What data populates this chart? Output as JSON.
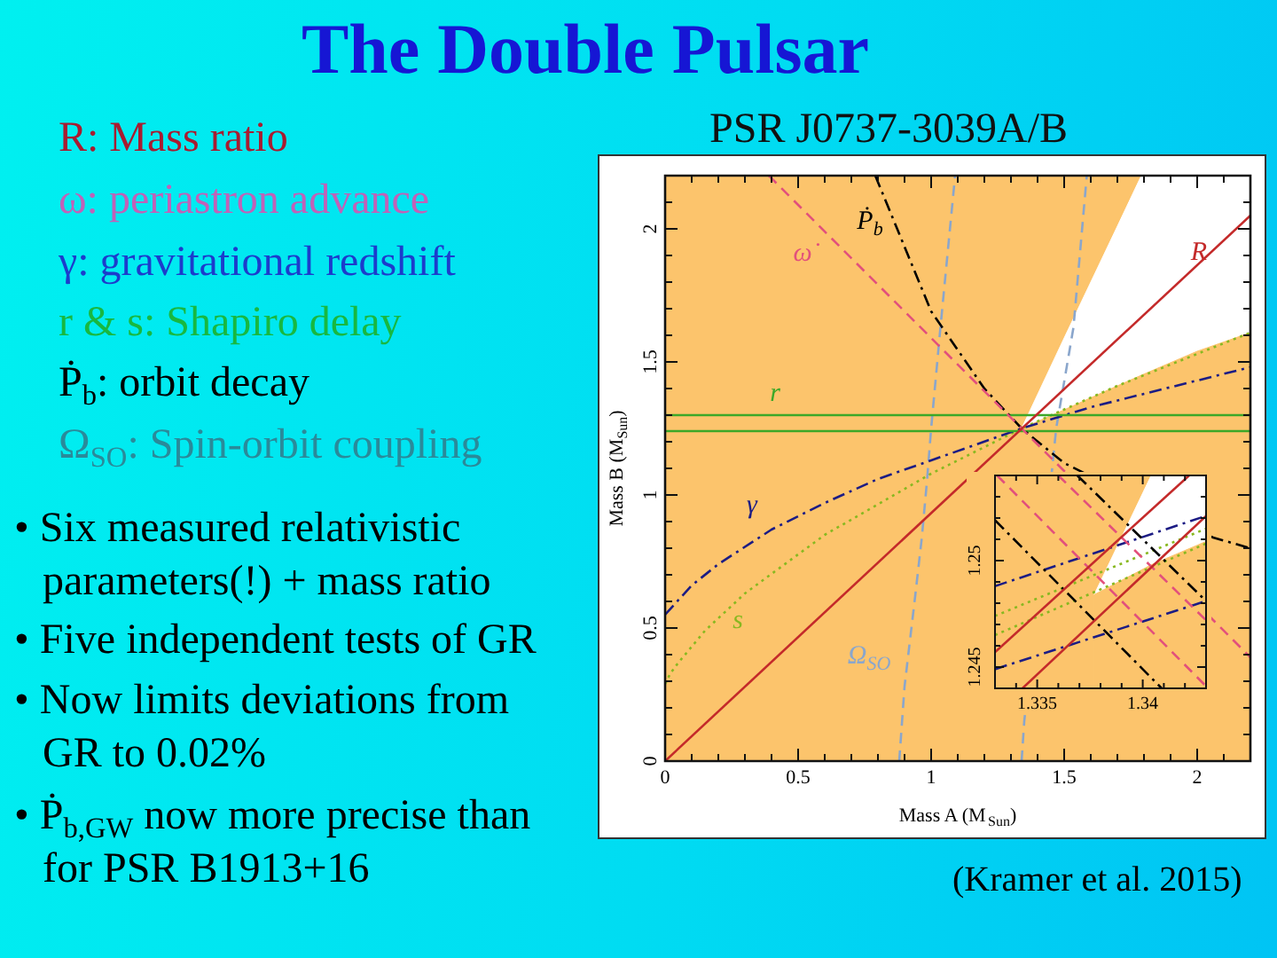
{
  "chart_data": [
    {
      "type": "line",
      "title": "The Double Pulsar",
      "subtitle": "PSR J0737-3039A/B",
      "xlabel": "Mass A (M$_{Sun}$)",
      "ylabel": "Mass B (M$_{Sun}$)",
      "annotations": [
        "R: Mass ratio",
        "ω: periastron advance",
        "γ: gravitational redshift",
        "r & s: Shapiro delay",
        "Ṗ$_{b}$: orbit decay",
        "Ω$_{SO}$: Spin-orbit coupling",
        "• Six measured relativistic parameters(!) + mass ratio",
        "• Five independent tests of GR",
        "• Now limits deviations from GR to 0.02%",
        "• Ṗ$_{b,GW}$ now more precise than for PSR B1913+16",
        "(Kramer et al. 2015)"
      ],
      "xlim": [
        0,
        2.2
      ],
      "ylim": [
        0,
        2.2
      ],
      "xticks": [
        0,
        {
          "value": 0.1,
          "label": null
        },
        {
          "value": 0.2,
          "label": null
        },
        {
          "value": 0.3,
          "label": null
        },
        {
          "value": 0.4,
          "label": null
        },
        0.5,
        {
          "value": 0.6,
          "label": null
        },
        {
          "value": 0.7,
          "label": null
        },
        {
          "value": 0.8,
          "label": null
        },
        {
          "value": 0.9,
          "label": null
        },
        1,
        {
          "value": 1.1,
          "label": null
        },
        {
          "value": 1.2,
          "label": null
        },
        {
          "value": 1.3,
          "label": null
        },
        {
          "value": 1.4,
          "label": null
        },
        1.5,
        {
          "value": 1.6,
          "label": null
        },
        {
          "value": 1.7,
          "label": null
        },
        {
          "value": 1.8,
          "label": null
        },
        {
          "value": 1.9,
          "label": null
        },
        2,
        {
          "value": 2.1,
          "label": null
        },
        {
          "value": 2.2,
          "label": null
        }
      ],
      "yticks": [
        0,
        {
          "value": 0.1,
          "label": null
        },
        {
          "value": 0.2,
          "label": null
        },
        {
          "value": 0.3,
          "label": null
        },
        {
          "value": 0.4,
          "label": null
        },
        0.5,
        {
          "value": 0.6,
          "label": null
        },
        {
          "value": 0.7,
          "label": null
        },
        {
          "value": 0.8,
          "label": null
        },
        {
          "value": 0.9,
          "label": null
        },
        1,
        {
          "value": 1.1,
          "label": null
        },
        {
          "value": 1.2,
          "label": null
        },
        {
          "value": 1.3,
          "label": null
        },
        {
          "value": 1.4,
          "label": null
        },
        1.5,
        {
          "value": 1.6,
          "label": null
        },
        {
          "value": 1.7,
          "label": null
        },
        {
          "value": 1.8,
          "label": null
        },
        {
          "value": 1.9,
          "label": null
        },
        2,
        {
          "value": 2.1,
          "label": null
        },
        {
          "value": 2.2,
          "label": null
        }
      ],
      "bands": [
        {
          "axis": "x",
          "from": 0,
          "to": 2.2,
          "color": "#fcc46c"
        }
      ],
      "marker": "none",
      "series": [
        {
          "type": "area",
          "color": "#ffffff",
          "x": [
            1.34,
            1.5,
            1.7,
            1.79,
            2.0,
            2.2
          ],
          "values": [
            1.25,
            1.59,
            2.01,
            2.2,
            2.2,
            2.2
          ]
        },
        {
          "type": "area",
          "color": "#fcc46c",
          "x": [
            1.34,
            1.5,
            1.7,
            1.79,
            2.0,
            2.2
          ],
          "values": [
            1.25,
            1.32,
            1.41,
            1.45,
            1.54,
            1.61
          ]
        },
        {
          "name": "R",
          "color": "#c42a2a",
          "line_style": "solid",
          "x": [
            0,
            2.2
          ],
          "values": [
            0,
            2.05
          ]
        },
        {
          "name": "ω̇",
          "color": "#e2507c",
          "line_style": "dashed",
          "x": [
            0.39,
            2.2
          ],
          "values": [
            2.2,
            0.39
          ]
        },
        {
          "name": "Ṗ$_{b}$",
          "color": "#000000",
          "line_style": "dashdot",
          "x": [
            0.79,
            1.0,
            1.2,
            1.34,
            1.5,
            2.06,
            2.2
          ],
          "values": [
            2.2,
            1.69,
            1.4,
            1.25,
            1.12,
            0.84,
            0.8
          ]
        },
        {
          "name": "r",
          "color": "#3ca828",
          "line_style": "solid",
          "x": [
            0,
            2.2
          ],
          "values": [
            1.3,
            1.3
          ]
        },
        {
          "color": "#3ca828",
          "line_style": "solid",
          "x": [
            0,
            2.2
          ],
          "values": [
            1.24,
            1.24
          ]
        },
        {
          "name": "γ",
          "color": "#1c1c84",
          "line_style": "dashdot",
          "x": [
            0,
            0.1,
            0.2,
            0.4,
            0.6,
            0.8,
            1.0,
            1.34,
            1.6,
            1.8,
            2.0,
            2.2
          ],
          "values": [
            0.55,
            0.66,
            0.74,
            0.87,
            0.97,
            1.06,
            1.13,
            1.25,
            1.33,
            1.38,
            1.43,
            1.48
          ]
        },
        {
          "name": "s",
          "color": "#88b820",
          "line_style": "dotted",
          "x": [
            0,
            0.02,
            0.05,
            0.15,
            0.3,
            0.6,
            1.0,
            1.34,
            1.7,
            2.2
          ],
          "values": [
            0.29,
            0.33,
            0.37,
            0.49,
            0.63,
            0.85,
            1.08,
            1.25,
            1.41,
            1.61
          ]
        },
        {
          "name": "Ω$_{SO}$",
          "color": "#8aa6cc",
          "line_style": "dashed",
          "x": [
            0.88,
            0.9,
            0.94,
            0.965,
            0.985,
            1.0,
            1.035,
            1.09
          ],
          "values": [
            0,
            0.28,
            0.62,
            0.84,
            1.06,
            1.25,
            1.63,
            2.2
          ]
        },
        {
          "color": "#8aa6cc",
          "line_style": "dashed",
          "x": [
            1.34,
            1.35,
            1.455,
            1.47,
            1.535,
            1.585
          ],
          "values": [
            0,
            0.15,
            1.1,
            1.25,
            1.63,
            2.2
          ]
        }
      ]
    },
    {
      "type": "line",
      "xlim": [
        1.333,
        1.343
      ],
      "ylim": [
        1.244,
        1.254
      ],
      "xticks": [
        {
          "value": 1.333,
          "label": null
        },
        {
          "value": 1.334,
          "label": null
        },
        1.335,
        {
          "value": 1.336,
          "label": null
        },
        {
          "value": 1.337,
          "label": null
        },
        {
          "value": 1.338,
          "label": null
        },
        {
          "value": 1.339,
          "label": null
        },
        1.34,
        {
          "value": 1.341,
          "label": null
        },
        {
          "value": 1.342,
          "label": null
        },
        {
          "value": 1.343,
          "label": null
        }
      ],
      "yticks": [
        {
          "value": 1.244,
          "label": null
        },
        1.245,
        {
          "value": 1.246,
          "label": null
        },
        {
          "value": 1.247,
          "label": null
        },
        {
          "value": 1.248,
          "label": null
        },
        {
          "value": 1.249,
          "label": null
        },
        1.25,
        {
          "value": 1.251,
          "label": null
        },
        {
          "value": 1.252,
          "label": null
        },
        {
          "value": 1.253,
          "label": null
        },
        {
          "value": 1.254,
          "label": null
        }
      ],
      "bands": [
        {
          "axis": "x",
          "from": 1.333,
          "to": 1.343,
          "color": "#fcc46c"
        }
      ],
      "marker": "none",
      "series": [
        {
          "type": "area",
          "color": "#ffffff",
          "x": [
            1.3377,
            1.3404,
            1.343
          ],
          "values": [
            1.2484,
            1.254,
            1.254
          ]
        },
        {
          "type": "area",
          "color": "#fcc46c",
          "x": [
            1.3377,
            1.3404,
            1.343
          ],
          "values": [
            1.2484,
            1.2498,
            1.2509
          ]
        },
        {
          "color": "#c42a2a",
          "line_style": "solid",
          "x": [
            1.333,
            1.3422
          ],
          "values": [
            1.2457,
            1.254
          ]
        },
        {
          "color": "#c42a2a",
          "line_style": "solid",
          "x": [
            1.3343,
            1.343
          ],
          "values": [
            1.244,
            1.2521
          ]
        },
        {
          "color": "#e2507c",
          "line_style": "dashed",
          "x": [
            1.3331,
            1.343
          ],
          "values": [
            1.254,
            1.2441
          ]
        },
        {
          "color": "#e2507c",
          "line_style": "dashed",
          "x": [
            1.336,
            1.343
          ],
          "values": [
            1.254,
            1.2472
          ]
        },
        {
          "color": "#000000",
          "line_style": "dashdot",
          "x": [
            1.333,
            1.3409
          ],
          "values": [
            1.2519,
            1.244
          ]
        },
        {
          "color": "#000000",
          "line_style": "dashdot",
          "x": [
            1.3369,
            1.343
          ],
          "values": [
            1.254,
            1.2481
          ]
        },
        {
          "color": "#1c1c84",
          "line_style": "dashdot",
          "x": [
            1.333,
            1.343
          ],
          "values": [
            1.2488,
            1.2521
          ]
        },
        {
          "color": "#1c1c84",
          "line_style": "dashdot",
          "x": [
            1.333,
            1.343
          ],
          "values": [
            1.2449,
            1.2481
          ]
        },
        {
          "color": "#88b820",
          "line_style": "dotted",
          "x": [
            1.333,
            1.343
          ],
          "values": [
            1.2474,
            1.2515
          ]
        },
        {
          "color": "#88b820",
          "line_style": "dotted",
          "x": [
            1.333,
            1.343
          ],
          "values": [
            1.2465,
            1.2508
          ]
        }
      ]
    }
  ]
}
